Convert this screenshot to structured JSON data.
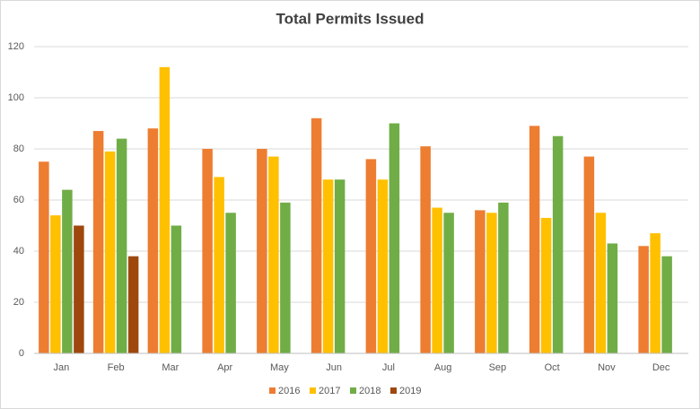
{
  "chart_data": {
    "type": "bar",
    "title": "Total Permits Issued",
    "categories": [
      "Jan",
      "Feb",
      "Mar",
      "Apr",
      "May",
      "Jun",
      "Jul",
      "Aug",
      "Sep",
      "Oct",
      "Nov",
      "Dec"
    ],
    "series": [
      {
        "name": "2016",
        "color": "#ed7d31",
        "values": [
          75,
          87,
          88,
          80,
          80,
          92,
          76,
          81,
          56,
          89,
          77,
          42
        ]
      },
      {
        "name": "2017",
        "color": "#ffc000",
        "values": [
          54,
          79,
          112,
          69,
          77,
          68,
          68,
          57,
          55,
          53,
          55,
          47
        ]
      },
      {
        "name": "2018",
        "color": "#70ad47",
        "values": [
          64,
          84,
          50,
          55,
          59,
          68,
          90,
          55,
          59,
          85,
          43,
          38
        ]
      },
      {
        "name": "2019",
        "color": "#9e480e",
        "values": [
          50,
          38,
          null,
          null,
          null,
          null,
          null,
          null,
          null,
          null,
          null,
          null
        ]
      }
    ],
    "ylim": [
      0,
      120
    ],
    "yticks": [
      0,
      20,
      40,
      60,
      80,
      100,
      120
    ],
    "grid": true,
    "legend": "bottom"
  }
}
